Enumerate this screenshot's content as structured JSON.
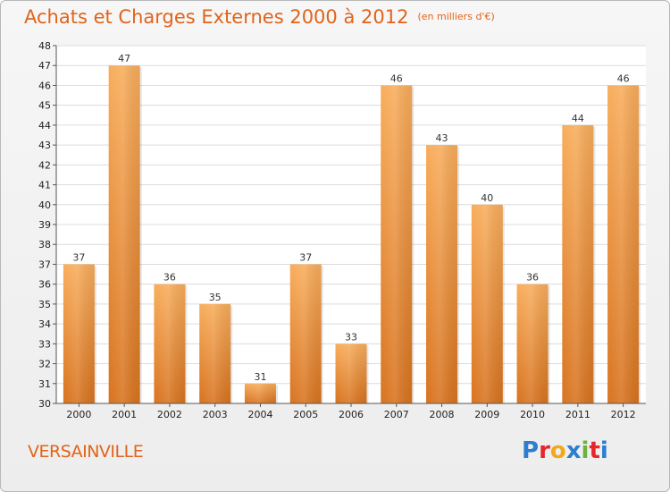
{
  "title": "Achats et Charges Externes 2000 à 2012",
  "subtitle": "(en milliers d'€)",
  "commune": "VERSAINVILLE",
  "logo": {
    "text": "Proxiti",
    "letters": [
      "P",
      "r",
      "o",
      "x",
      "i",
      "t",
      "i"
    ],
    "colors": [
      "#2a7fd0",
      "#e5262a",
      "#f2a81d",
      "#2a7fd0",
      "#6cb33e",
      "#e5262a",
      "#2a7fd0"
    ]
  },
  "colors": {
    "bar_light": "#f8ad5c",
    "bar_dark": "#d8731f",
    "title": "#e0641a",
    "grid": "#dcdcdc"
  },
  "chart_data": {
    "type": "bar",
    "categories": [
      "2000",
      "2001",
      "2002",
      "2003",
      "2004",
      "2005",
      "2006",
      "2007",
      "2008",
      "2009",
      "2010",
      "2011",
      "2012"
    ],
    "values": [
      37,
      47,
      36,
      35,
      31,
      37,
      33,
      46,
      43,
      40,
      36,
      44,
      46
    ],
    "ylim": [
      30,
      48
    ],
    "yticks": [
      30,
      31,
      32,
      33,
      34,
      35,
      36,
      37,
      38,
      39,
      40,
      41,
      42,
      43,
      44,
      45,
      46,
      47,
      48
    ],
    "grid": true
  }
}
